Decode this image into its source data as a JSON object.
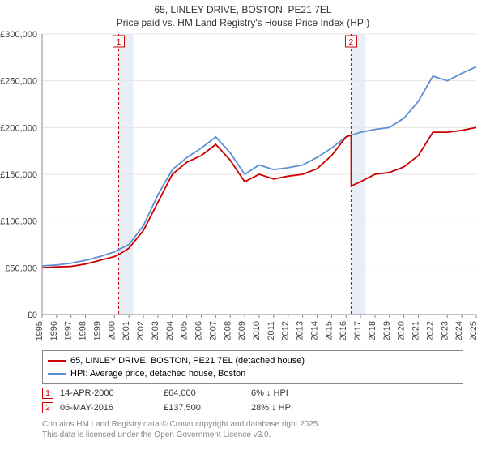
{
  "title_line1": "65, LINLEY DRIVE, BOSTON, PE21 7EL",
  "title_line2": "Price paid vs. HM Land Registry's House Price Index (HPI)",
  "chart": {
    "type": "line",
    "background_color": "#ffffff",
    "plot_background": "#ffffff",
    "grid_color": "#e5e5e5",
    "x_start_year": 1995,
    "x_end_year": 2025,
    "xtick_step_years": 1,
    "ylim": [
      0,
      300000
    ],
    "ytick_step": 50000,
    "yticks": [
      "£0",
      "£50,000",
      "£100,000",
      "£150,000",
      "£200,000",
      "£250,000",
      "£300,000"
    ],
    "xticks": [
      "1995",
      "1996",
      "1997",
      "1998",
      "1999",
      "2000",
      "2001",
      "2002",
      "2003",
      "2004",
      "2005",
      "2006",
      "2007",
      "2008",
      "2009",
      "2010",
      "2011",
      "2012",
      "2013",
      "2014",
      "2015",
      "2016",
      "2017",
      "2018",
      "2019",
      "2020",
      "2021",
      "2022",
      "2023",
      "2024",
      "2025"
    ],
    "shaded_bands": [
      {
        "from_year": 2000.29,
        "to_year": 2001.29,
        "color": "#e8eef6"
      },
      {
        "from_year": 2016.35,
        "to_year": 2017.35,
        "color": "#e8eef6"
      }
    ],
    "sale_markers": [
      {
        "label": "1",
        "year": 2000.29,
        "color": "#cc0000"
      },
      {
        "label": "2",
        "year": 2016.35,
        "color": "#cc0000"
      }
    ],
    "series_price_paid": {
      "color": "#cc0000",
      "width": 1.8,
      "x": [
        1995,
        1996,
        1997,
        1998,
        1999,
        2000,
        2000.29,
        2001,
        2002,
        2003,
        2004,
        2005,
        2006,
        2007,
        2008,
        2009,
        2010,
        2011,
        2012,
        2013,
        2014,
        2015,
        2016,
        2016.35,
        2016.36,
        2017,
        2018,
        2019,
        2020,
        2021,
        2022,
        2023,
        2024,
        2025
      ],
      "y": [
        50000,
        51000,
        51500,
        54000,
        58000,
        62000,
        64000,
        71000,
        90000,
        120000,
        150000,
        163000,
        170000,
        182000,
        165000,
        142000,
        150000,
        145000,
        148000,
        150000,
        156000,
        170000,
        190000,
        192000,
        137500,
        142000,
        150000,
        152000,
        158000,
        170000,
        195000,
        195000,
        197000,
        200000
      ]
    },
    "series_hpi": {
      "color": "#5b8fd6",
      "width": 1.8,
      "x": [
        1995,
        1996,
        1997,
        1998,
        1999,
        2000,
        2001,
        2002,
        2003,
        2004,
        2005,
        2006,
        2007,
        2008,
        2009,
        2010,
        2011,
        2012,
        2013,
        2014,
        2015,
        2016,
        2017,
        2018,
        2019,
        2020,
        2021,
        2022,
        2023,
        2024,
        2025
      ],
      "y": [
        52000,
        53000,
        55000,
        58000,
        62000,
        67000,
        75000,
        95000,
        128000,
        155000,
        168000,
        178000,
        190000,
        173000,
        150000,
        160000,
        155000,
        157000,
        160000,
        168000,
        178000,
        190000,
        195000,
        198000,
        200000,
        210000,
        228000,
        255000,
        250000,
        258000,
        265000
      ]
    }
  },
  "legend": {
    "item1_label": "65, LINLEY DRIVE, BOSTON, PE21 7EL (detached house)",
    "item1_color": "#cc0000",
    "item2_label": "HPI: Average price, detached house, Boston",
    "item2_color": "#5b8fd6"
  },
  "sales": [
    {
      "marker": "1",
      "marker_color": "#cc0000",
      "date": "14-APR-2000",
      "price": "£64,000",
      "diff": "6% ↓ HPI"
    },
    {
      "marker": "2",
      "marker_color": "#cc0000",
      "date": "06-MAY-2016",
      "price": "£137,500",
      "diff": "28% ↓ HPI"
    }
  ],
  "footer_line1": "Contains HM Land Registry data © Crown copyright and database right 2025.",
  "footer_line2": "This data is licensed under the Open Government Licence v3.0."
}
